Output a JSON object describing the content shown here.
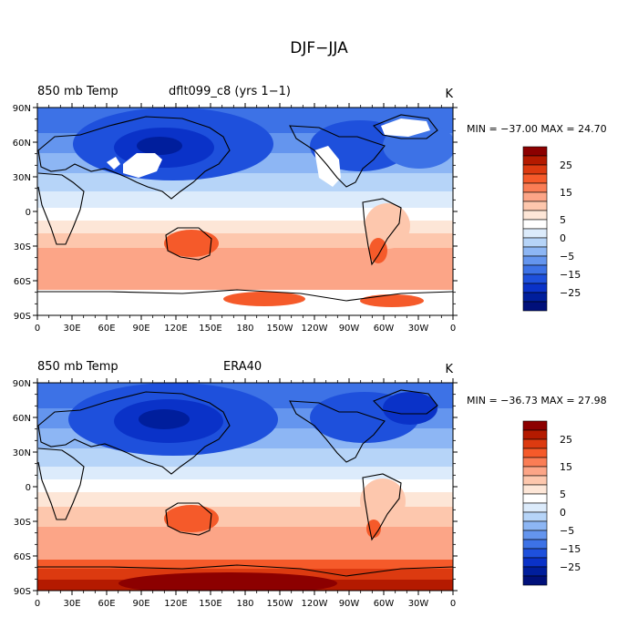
{
  "figure": {
    "title": "DJF−JJA"
  },
  "panels": [
    {
      "variable": "850 mb Temp",
      "case": "dflt099_c8 (yrs 1−1)",
      "units": "K",
      "stats": "MIN = −37.00  MAX =  24.70",
      "missing_data": true
    },
    {
      "variable": "850 mb Temp",
      "case": "ERA40",
      "units": "K",
      "stats": "MIN = −36.73  MAX =  27.98",
      "missing_data": false
    }
  ],
  "axes": {
    "lat_ticks": [
      "90N",
      "60N",
      "30N",
      "0",
      "30S",
      "60S",
      "90S"
    ],
    "lon_ticks": [
      "0",
      "30E",
      "60E",
      "90E",
      "120E",
      "150E",
      "180",
      "150W",
      "120W",
      "90W",
      "60W",
      "30W",
      "0"
    ]
  },
  "colorbar": {
    "labels": [
      "25",
      "15",
      "5",
      "0",
      "−5",
      "−15",
      "−25"
    ],
    "colors": [
      "#8c0000",
      "#b41a00",
      "#dc3a10",
      "#f55a2a",
      "#fa7d55",
      "#fca587",
      "#fdc7ad",
      "#fde6d7",
      "#ffffff",
      "#dcebfb",
      "#b6d4f8",
      "#8db6f4",
      "#6495ee",
      "#3d72e6",
      "#1e50dc",
      "#0a32c8",
      "#001e9c",
      "#00107a"
    ]
  }
}
